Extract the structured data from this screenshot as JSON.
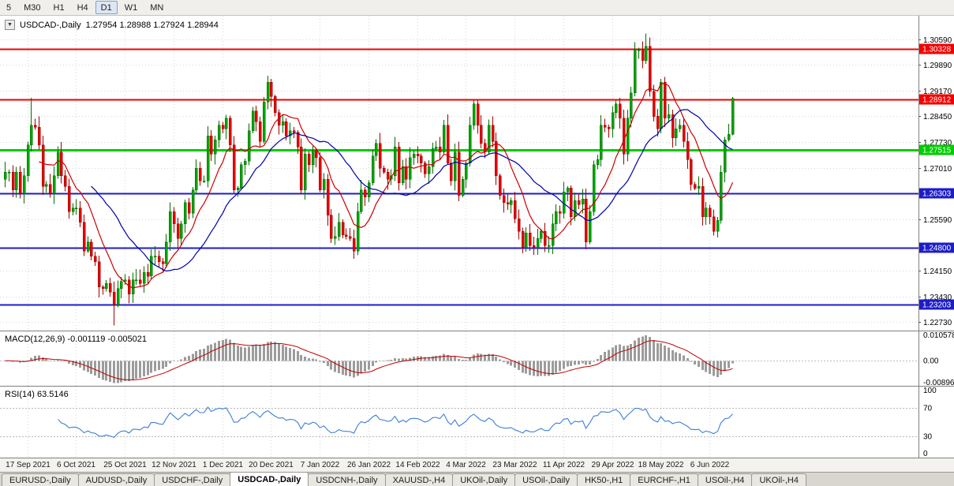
{
  "toolbar": {
    "timeframes": [
      "5",
      "M30",
      "H1",
      "H4",
      "D1",
      "W1",
      "MN"
    ],
    "active": "D1"
  },
  "icons": {
    "symbol_marker": "▼"
  },
  "chart": {
    "header": {
      "symbol": "USDCAD-,Daily",
      "ohlc": "1.27954 1.28988 1.27924 1.28944"
    },
    "macd": {
      "label": "MACD(12,26,9)",
      "values": "-0.001119 -0.005021"
    },
    "rsi": {
      "label": "RSI(14)",
      "value": "63.5146"
    }
  },
  "chart_data": {
    "type": "candlestick",
    "symbol": "USDCAD",
    "timeframe": "Daily",
    "last_ohlc": {
      "open": 1.27954,
      "high": 1.28988,
      "low": 1.27924,
      "close": 1.28944
    },
    "first_open": 1.267,
    "closes": [
      1.269,
      1.269,
      1.264,
      1.269,
      1.263,
      1.268,
      1.2765,
      1.282,
      1.2815,
      1.2765,
      1.265,
      1.2655,
      1.263,
      1.268,
      1.2745,
      1.268,
      1.265,
      1.258,
      1.259,
      1.259,
      1.255,
      1.247,
      1.2495,
      1.2455,
      1.244,
      1.237,
      1.2365,
      1.238,
      1.2355,
      1.232,
      1.2365,
      1.2385,
      1.239,
      1.235,
      1.239,
      1.239,
      1.238,
      1.241,
      1.24,
      1.2455,
      1.2455,
      1.244,
      1.2435,
      1.2495,
      1.258,
      1.2545,
      1.2505,
      1.2545,
      1.2605,
      1.2575,
      1.264,
      1.27,
      1.2665,
      1.2665,
      1.279,
      1.274,
      1.278,
      1.282,
      1.281,
      1.284,
      1.2765,
      1.264,
      1.2645,
      1.271,
      1.272,
      1.2805,
      1.286,
      1.283,
      1.2775,
      1.2885,
      1.294,
      1.29,
      1.2855,
      1.282,
      1.283,
      1.279,
      1.2805,
      1.28,
      1.276,
      1.264,
      1.274,
      1.271,
      1.275,
      1.273,
      1.264,
      1.267,
      1.257,
      1.2505,
      1.251,
      1.255,
      1.2515,
      1.251,
      1.2505,
      1.247,
      1.258,
      1.264,
      1.262,
      1.266,
      1.2735,
      1.277,
      1.27,
      1.269,
      1.267,
      1.268,
      1.276,
      1.266,
      1.2705,
      1.267,
      1.273,
      1.274,
      1.2735,
      1.2715,
      1.2685,
      1.2705,
      1.2755,
      1.276,
      1.2745,
      1.282,
      1.2715,
      1.2665,
      1.2745,
      1.2625,
      1.267,
      1.2715,
      1.282,
      1.288,
      1.282,
      1.277,
      1.2745,
      1.282,
      1.2775,
      1.268,
      1.2625,
      1.2605,
      1.26,
      1.261,
      1.256,
      1.2525,
      1.248,
      1.252,
      1.2485,
      1.248,
      1.2505,
      1.2525,
      1.2485,
      1.2485,
      1.2545,
      1.258,
      1.2575,
      1.2635,
      1.2645,
      1.2565,
      1.261,
      1.26,
      1.2615,
      1.2495,
      1.258,
      1.271,
      1.2725,
      1.282,
      1.2815,
      1.281,
      1.2855,
      1.288,
      1.284,
      1.274,
      1.284,
      1.291,
      1.303,
      1.303,
      1.3,
      1.304,
      1.2915,
      1.2845,
      1.281,
      1.294,
      1.284,
      1.285,
      1.2785,
      1.281,
      1.282,
      1.2775,
      1.2725,
      1.2655,
      1.2645,
      1.265,
      1.2565,
      1.259,
      1.2565,
      1.2525,
      1.2555,
      1.269,
      1.278,
      1.2795,
      1.2894
    ],
    "overrides": {
      "7": {
        "high": 1.2896
      },
      "29": {
        "low": 1.2262
      },
      "171": {
        "high": 1.3076
      },
      "194": {
        "open": 1.27954,
        "high": 1.28988,
        "low": 1.27924,
        "close": 1.28944
      }
    },
    "price_axis": {
      "min": 1.2246,
      "max": 1.3125,
      "ticks": [
        "1.30590",
        "1.29890",
        "1.29170",
        "1.28450",
        "1.27730",
        "1.27010",
        "1.25590",
        "1.24150",
        "1.23430",
        "1.22730"
      ]
    },
    "levels": [
      {
        "price": 1.30328,
        "label": "1.30328",
        "color": "#f20000",
        "width": 2
      },
      {
        "price": 1.28912,
        "label": "1.28912",
        "color": "#f20000",
        "width": 2
      },
      {
        "price": 1.27515,
        "label": "1.27515",
        "color": "#00cc00",
        "width": 3
      },
      {
        "price": 1.26303,
        "label": "1.26303",
        "color": "#1d1dc8",
        "width": 2
      },
      {
        "price": 1.248,
        "label": "1.24800",
        "color": "#1d1dc8",
        "width": 2
      },
      {
        "price": 1.23203,
        "label": "1.23203",
        "color": "#1d1dc8",
        "width": 2
      }
    ],
    "date_ticks": {
      "first_index": 6,
      "every": 13,
      "labels": [
        "17 Sep 2021",
        "6 Oct 2021",
        "25 Oct 2021",
        "12 Nov 2021",
        "1 Dec 2021",
        "20 Dec 2021",
        "7 Jan 2022",
        "26 Jan 2022",
        "14 Feb 2022",
        "4 Mar 2022",
        "23 Mar 2022",
        "11 Apr 2022",
        "29 Apr 2022",
        "18 May 2022",
        "6 Jun 2022"
      ]
    },
    "ma_fast": {
      "period": 10,
      "type": "sma",
      "color": "#cc0000"
    },
    "ma_slow": {
      "period": 24,
      "type": "sma",
      "color": "#0000a8"
    },
    "macd": {
      "fast": 12,
      "slow": 26,
      "signal": 9,
      "value": -0.001119,
      "signal_value": -0.005021,
      "scale_max": 0.0118,
      "scale_min": -0.0104,
      "axis_labels": [
        {
          "text": "0.010578",
          "value": 0.010578
        },
        {
          "text": "0.00",
          "value": 0
        },
        {
          "text": "-0.00896",
          "value": -0.00896
        }
      ]
    },
    "rsi_ind": {
      "period": 14,
      "value": 63.5146,
      "dashed_levels": [
        70,
        30
      ],
      "axis_labels": [
        {
          "text": "100",
          "value": 100
        },
        {
          "text": "70",
          "value": 70
        },
        {
          "text": "30",
          "value": 30
        },
        {
          "text": "0",
          "value": 0
        }
      ]
    },
    "colors": {
      "up": {
        "fill": "#00a400",
        "stroke": "#006e00"
      },
      "down": {
        "fill": "#e80000",
        "stroke": "#9e0000"
      },
      "macd_hist": "#9c9c9c",
      "macd_signal": "#c00000",
      "rsi_line": "#3d7fd6",
      "grid": "#d6d6d6",
      "axis_border": "#808080"
    }
  },
  "tabs": {
    "active_index": 3,
    "items": [
      "EURUSD-,Daily",
      "AUDUSD-,Daily",
      "USDCHF-,Daily",
      "USDCAD-,Daily",
      "USDCNH-,Daily",
      "XAUUSD-,H4",
      "UKOil-,Daily",
      "USOil-,Daily",
      "HK50-,H1",
      "EURCHF-,H1",
      "USOil-,H4",
      "UKOil-,H4"
    ]
  }
}
